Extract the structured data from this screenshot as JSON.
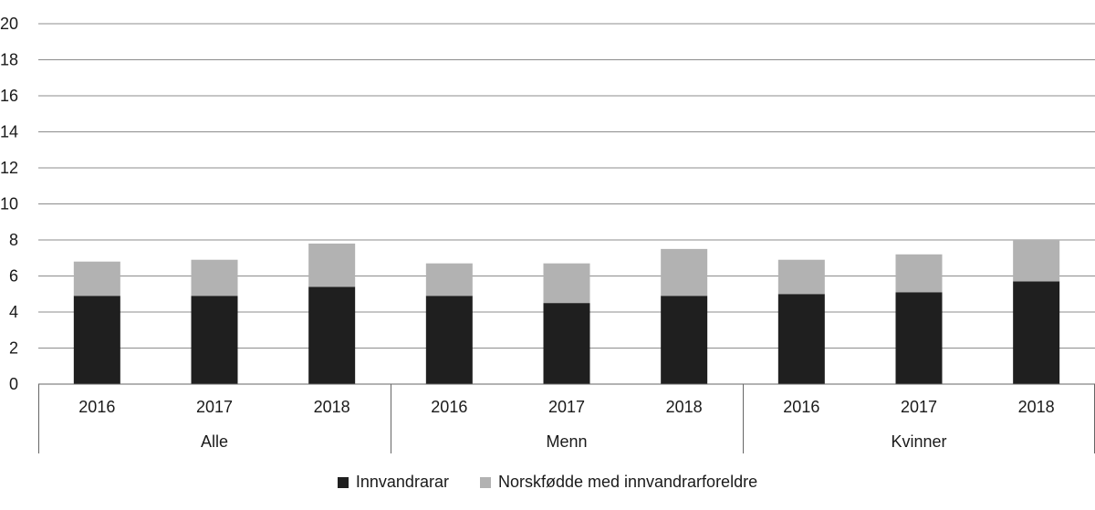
{
  "chart_data": {
    "type": "bar",
    "stacked": true,
    "groups": [
      {
        "label": "Alle",
        "categories": [
          "2016",
          "2017",
          "2018"
        ]
      },
      {
        "label": "Menn",
        "categories": [
          "2016",
          "2017",
          "2018"
        ]
      },
      {
        "label": "Kvinner",
        "categories": [
          "2016",
          "2017",
          "2018"
        ]
      }
    ],
    "series": [
      {
        "name": "Innvandrarar",
        "color": "#1f1f1f",
        "values": [
          4.9,
          4.9,
          5.4,
          4.9,
          4.5,
          4.9,
          5.0,
          5.1,
          5.7
        ]
      },
      {
        "name": "Norskfødde med innvandrarforeldre",
        "color": "#b2b2b2",
        "values": [
          1.9,
          2.0,
          2.4,
          1.8,
          2.2,
          2.6,
          1.9,
          2.1,
          2.3
        ]
      }
    ],
    "ylim": [
      0,
      20
    ],
    "yticks": [
      "0",
      "2",
      "4",
      "6",
      "8",
      "10",
      "12",
      "14",
      "16",
      "18",
      "20"
    ],
    "grid": true,
    "legend_position": "bottom"
  }
}
